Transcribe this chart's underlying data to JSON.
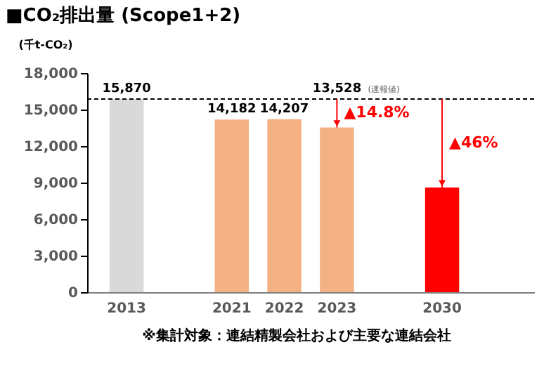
{
  "chart_data": {
    "type": "bar",
    "title": "■CO₂排出量 (Scope1+2)",
    "ylabel": "(千t-CO₂)",
    "categories": [
      "2013",
      null,
      "2021",
      "2022",
      "2023",
      null,
      "2030"
    ],
    "values": [
      15870,
      null,
      14182,
      14207,
      13528,
      null,
      8600
    ],
    "colors": [
      "#d9d9d9",
      null,
      "#f4b183",
      "#f4b183",
      "#f4b183",
      null,
      "#ff0000"
    ],
    "value_labels": [
      "15,870",
      null,
      "14,182",
      "14,207",
      "13,528",
      null,
      null
    ],
    "ylim": [
      0,
      18000
    ],
    "yticks": [
      {
        "value": 0,
        "label": "0"
      },
      {
        "value": 3000,
        "label": "3,000"
      },
      {
        "value": 6000,
        "label": "6,000"
      },
      {
        "value": 9000,
        "label": "9,000"
      },
      {
        "value": 12000,
        "label": "12,000"
      },
      {
        "value": 15000,
        "label": "15,000"
      },
      {
        "value": 18000,
        "label": "18,000"
      }
    ],
    "ref_lines": [
      {
        "axis": "y",
        "value": 15870,
        "line_style": "dashed",
        "color": "#000000"
      }
    ],
    "annotations": [
      {
        "text": "▲14.8%",
        "x": "2023",
        "y": 13528
      },
      "(速報値)",
      {
        "text": "▲46%",
        "x": "2030",
        "y": 8600
      },
      "※集計対象：連結精製会社および主要な連結会社"
    ],
    "grid": false
  }
}
